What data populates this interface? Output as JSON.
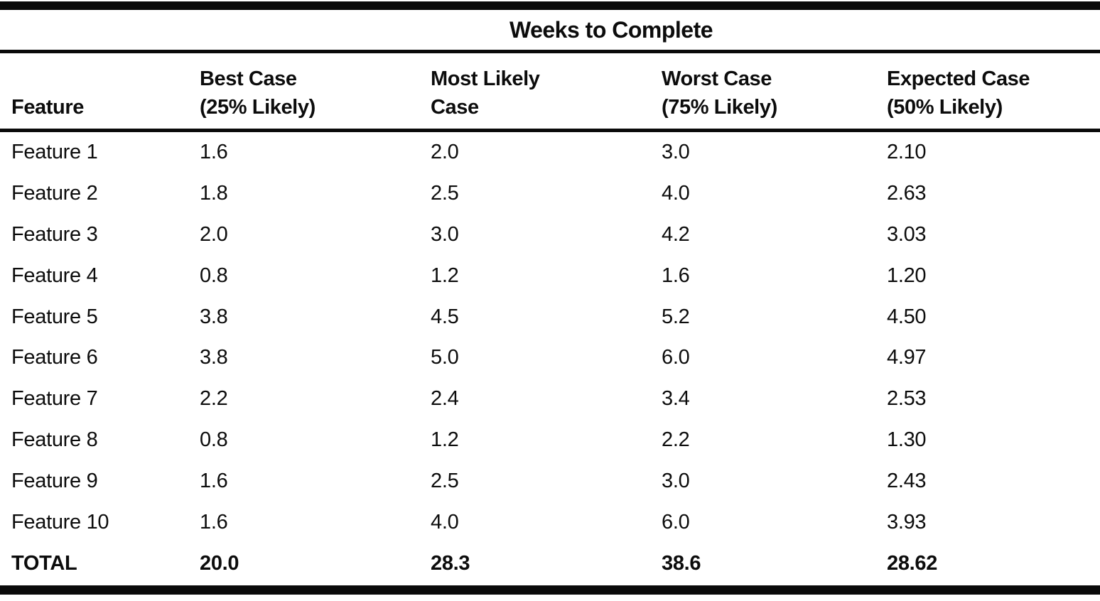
{
  "page": {
    "background": "#ffffff",
    "text_color": "#0c0c0c",
    "rule_color": "#0a0a0a"
  },
  "table": {
    "title": "Weeks to Complete",
    "columns": [
      {
        "key": "feature",
        "line1": "Feature",
        "line2": ""
      },
      {
        "key": "best-case",
        "line1": "Best Case",
        "line2": "(25% Likely)"
      },
      {
        "key": "most-likely-case",
        "line1": "Most Likely",
        "line2": "Case"
      },
      {
        "key": "worst-case",
        "line1": "Worst Case",
        "line2": "(75% Likely)"
      },
      {
        "key": "expected-case",
        "line1": "Expected Case",
        "line2": "(50% Likely)"
      }
    ],
    "rows": [
      [
        "Feature 1",
        "1.6",
        "2.0",
        "3.0",
        "2.10"
      ],
      [
        "Feature 2",
        "1.8",
        "2.5",
        "4.0",
        "2.63"
      ],
      [
        "Feature 3",
        "2.0",
        "3.0",
        "4.2",
        "3.03"
      ],
      [
        "Feature 4",
        "0.8",
        "1.2",
        "1.6",
        "1.20"
      ],
      [
        "Feature 5",
        "3.8",
        "4.5",
        "5.2",
        "4.50"
      ],
      [
        "Feature 6",
        "3.8",
        "5.0",
        "6.0",
        "4.97"
      ],
      [
        "Feature 7",
        "2.2",
        "2.4",
        "3.4",
        "2.53"
      ],
      [
        "Feature 8",
        "0.8",
        "1.2",
        "2.2",
        "1.30"
      ],
      [
        "Feature 9",
        "1.6",
        "2.5",
        "3.0",
        "2.43"
      ],
      [
        "Feature 10",
        "1.6",
        "4.0",
        "6.0",
        "3.93"
      ]
    ],
    "total_row": [
      "TOTAL",
      "20.0",
      "28.3",
      "38.6",
      "28.62"
    ]
  }
}
